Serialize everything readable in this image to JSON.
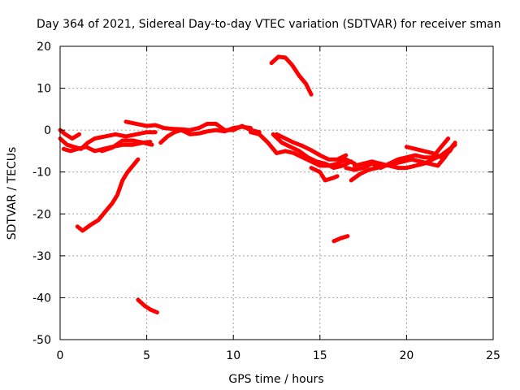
{
  "chart_data": {
    "type": "scatter",
    "title": "Day 364 of 2021, Sidereal Day-to-day VTEC variation (SDTVAR) for receiver sman",
    "xlabel": "GPS time / hours",
    "ylabel": "SDTVAR / TECUs",
    "xlim": [
      0,
      25
    ],
    "ylim": [
      -50,
      20
    ],
    "xticks": [
      0,
      5,
      10,
      15,
      20,
      25
    ],
    "yticks": [
      -50,
      -40,
      -30,
      -20,
      -10,
      0,
      10,
      20
    ],
    "xtick_labels": [
      "0",
      "5",
      "10",
      "15",
      "20",
      "25"
    ],
    "ytick_labels": [
      "-50",
      "-40",
      "-30",
      "-20",
      "-10",
      "0",
      "10",
      "20"
    ],
    "grid": true,
    "series_color": "#ff0000",
    "series": [
      {
        "name": "track-1",
        "points": [
          [
            0.0,
            -2.0
          ],
          [
            0.4,
            -3.5
          ],
          [
            0.8,
            -4.0
          ],
          [
            1.2,
            -4.5
          ],
          [
            1.6,
            -3.0
          ],
          [
            2.0,
            -2.0
          ],
          [
            2.6,
            -1.5
          ],
          [
            3.2,
            -1.0
          ],
          [
            3.8,
            -1.5
          ],
          [
            4.4,
            -1.0
          ],
          [
            5.0,
            -0.5
          ],
          [
            5.5,
            -0.5
          ]
        ]
      },
      {
        "name": "track-2",
        "points": [
          [
            0.0,
            0.0
          ],
          [
            0.3,
            -1.0
          ],
          [
            0.7,
            -2.0
          ],
          [
            1.1,
            -1.0
          ]
        ]
      },
      {
        "name": "track-3",
        "points": [
          [
            0.2,
            -4.5
          ],
          [
            0.6,
            -5.0
          ],
          [
            1.0,
            -4.5
          ],
          [
            1.5,
            -4.0
          ],
          [
            2.0,
            -5.0
          ],
          [
            2.5,
            -4.5
          ],
          [
            3.0,
            -4.0
          ],
          [
            3.6,
            -3.5
          ],
          [
            4.2,
            -3.5
          ],
          [
            4.8,
            -3.0
          ],
          [
            5.3,
            -3.5
          ]
        ]
      },
      {
        "name": "track-4",
        "points": [
          [
            2.4,
            -5.0
          ],
          [
            3.0,
            -4.2
          ],
          [
            3.6,
            -2.5
          ],
          [
            4.2,
            -2.5
          ],
          [
            4.8,
            -3.0
          ],
          [
            5.2,
            -2.8
          ]
        ]
      },
      {
        "name": "track-5",
        "points": [
          [
            3.8,
            2.0
          ],
          [
            4.4,
            1.5
          ],
          [
            5.0,
            1.0
          ],
          [
            5.5,
            1.2
          ],
          [
            6.0,
            0.5
          ],
          [
            6.5,
            0.3
          ],
          [
            7.0,
            0.2
          ],
          [
            7.5,
            0.0
          ],
          [
            8.0,
            0.5
          ],
          [
            8.5,
            1.5
          ],
          [
            9.0,
            1.5
          ],
          [
            9.5,
            0.0
          ],
          [
            10.0,
            0.0
          ],
          [
            10.5,
            1.0
          ],
          [
            11.0,
            0.0
          ],
          [
            11.5,
            -0.5
          ]
        ]
      },
      {
        "name": "track-6",
        "points": [
          [
            5.8,
            -3.0
          ],
          [
            6.2,
            -1.5
          ],
          [
            6.6,
            -0.5
          ],
          [
            7.0,
            0.0
          ],
          [
            7.5,
            -1.0
          ],
          [
            8.0,
            -0.8
          ],
          [
            8.5,
            -0.3
          ],
          [
            9.0,
            0.0
          ],
          [
            9.5,
            -0.3
          ],
          [
            10.0,
            0.5
          ],
          [
            10.5,
            0.8
          ],
          [
            11.0,
            0.5
          ]
        ]
      },
      {
        "name": "track-7",
        "points": [
          [
            11.0,
            -0.5
          ],
          [
            11.5,
            -1.0
          ],
          [
            12.0,
            -3.0
          ],
          [
            12.5,
            -5.5
          ],
          [
            13.0,
            -5.0
          ],
          [
            13.5,
            -5.5
          ],
          [
            14.0,
            -6.5
          ],
          [
            14.5,
            -7.5
          ],
          [
            15.0,
            -8.5
          ],
          [
            15.5,
            -8.5
          ],
          [
            16.0,
            -8.0
          ],
          [
            16.5,
            -7.0
          ],
          [
            17.0,
            -8.0
          ]
        ]
      },
      {
        "name": "track-8",
        "points": [
          [
            12.3,
            -1.0
          ],
          [
            12.8,
            -3.0
          ],
          [
            13.3,
            -4.0
          ],
          [
            13.8,
            -5.0
          ],
          [
            14.3,
            -6.5
          ],
          [
            14.8,
            -7.5
          ],
          [
            15.3,
            -8.0
          ],
          [
            15.8,
            -9.0
          ],
          [
            16.3,
            -8.5
          ],
          [
            16.8,
            -7.5
          ]
        ]
      },
      {
        "name": "track-9",
        "points": [
          [
            12.5,
            -1.0
          ],
          [
            13.0,
            -2.0
          ],
          [
            13.5,
            -3.0
          ],
          [
            14.0,
            -3.8
          ],
          [
            14.5,
            -4.8
          ],
          [
            15.0,
            -6.0
          ],
          [
            15.5,
            -7.0
          ],
          [
            16.0,
            -7.0
          ],
          [
            16.5,
            -6.0
          ]
        ]
      },
      {
        "name": "track-10",
        "points": [
          [
            14.5,
            -9.0
          ],
          [
            15.0,
            -10.0
          ],
          [
            15.3,
            -12.0
          ],
          [
            15.7,
            -11.5
          ],
          [
            16.0,
            -11.0
          ]
        ]
      },
      {
        "name": "track-11",
        "points": [
          [
            16.5,
            -9.0
          ],
          [
            17.0,
            -9.5
          ],
          [
            17.5,
            -9.0
          ],
          [
            18.0,
            -8.0
          ],
          [
            18.5,
            -9.0
          ],
          [
            19.0,
            -8.0
          ],
          [
            19.5,
            -7.0
          ],
          [
            20.0,
            -6.5
          ],
          [
            20.5,
            -6.0
          ],
          [
            21.0,
            -6.5
          ],
          [
            21.5,
            -6.5
          ],
          [
            22.0,
            -4.0
          ],
          [
            22.4,
            -2.0
          ]
        ]
      },
      {
        "name": "track-12",
        "points": [
          [
            16.8,
            -12.0
          ],
          [
            17.3,
            -10.5
          ],
          [
            17.8,
            -9.5
          ],
          [
            18.3,
            -9.0
          ],
          [
            18.8,
            -8.5
          ],
          [
            19.3,
            -8.0
          ],
          [
            19.8,
            -7.5
          ],
          [
            20.3,
            -7.0
          ],
          [
            20.8,
            -7.5
          ],
          [
            21.3,
            -8.0
          ],
          [
            21.8,
            -8.5
          ],
          [
            22.2,
            -6.5
          ],
          [
            22.7,
            -3.5
          ]
        ]
      },
      {
        "name": "track-13",
        "points": [
          [
            17.0,
            -8.5
          ],
          [
            17.5,
            -8.0
          ],
          [
            18.0,
            -7.5
          ],
          [
            18.5,
            -8.0
          ],
          [
            19.0,
            -8.5
          ],
          [
            19.5,
            -9.0
          ],
          [
            20.0,
            -9.0
          ],
          [
            20.5,
            -8.5
          ],
          [
            21.0,
            -8.0
          ],
          [
            21.5,
            -7.0
          ],
          [
            22.0,
            -6.0
          ],
          [
            22.8,
            -3.5
          ]
        ]
      },
      {
        "name": "track-14",
        "points": [
          [
            20.0,
            -4.0
          ],
          [
            20.5,
            -4.5
          ],
          [
            21.0,
            -5.0
          ],
          [
            21.5,
            -5.5
          ],
          [
            22.0,
            -6.5
          ],
          [
            22.5,
            -5.0
          ],
          [
            22.8,
            -3.0
          ]
        ]
      },
      {
        "name": "track-15",
        "points": [
          [
            1.0,
            -23.0
          ],
          [
            1.3,
            -24.0
          ],
          [
            1.8,
            -22.5
          ],
          [
            2.2,
            -21.5
          ],
          [
            2.6,
            -19.5
          ],
          [
            3.0,
            -17.5
          ],
          [
            3.3,
            -15.5
          ],
          [
            3.6,
            -12.0
          ],
          [
            3.9,
            -10.0
          ],
          [
            4.2,
            -8.5
          ],
          [
            4.5,
            -7.0
          ]
        ]
      },
      {
        "name": "track-16",
        "points": [
          [
            4.5,
            -40.5
          ],
          [
            4.9,
            -42.0
          ],
          [
            5.2,
            -42.8
          ],
          [
            5.6,
            -43.5
          ]
        ]
      },
      {
        "name": "track-17",
        "points": [
          [
            12.2,
            16.0
          ],
          [
            12.6,
            17.5
          ],
          [
            13.0,
            17.3
          ],
          [
            13.4,
            15.5
          ],
          [
            13.8,
            13.0
          ],
          [
            14.2,
            11.0
          ],
          [
            14.5,
            8.5
          ]
        ]
      },
      {
        "name": "track-18",
        "points": [
          [
            15.8,
            -26.5
          ],
          [
            16.2,
            -25.8
          ],
          [
            16.6,
            -25.3
          ]
        ]
      }
    ]
  }
}
